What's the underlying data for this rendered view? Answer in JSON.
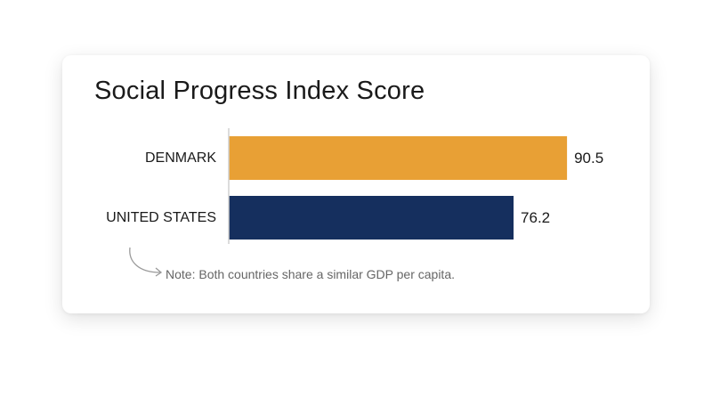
{
  "chart_data": {
    "type": "bar",
    "orientation": "horizontal",
    "title": "Social Progress Index Score",
    "categories": [
      "DENMARK",
      "UNITED STATES"
    ],
    "values": [
      90.5,
      76.2
    ],
    "value_labels": [
      "90.5",
      "76.2"
    ],
    "xlim": [
      0,
      100
    ],
    "grid": false,
    "legend": "none"
  },
  "note": "Note: Both countries share a similar GDP per capita.",
  "colors": {
    "bars": [
      "#E8A035",
      "#152F5E"
    ],
    "axis": "#d0d0d0",
    "note": "#666666"
  },
  "icons": {
    "note_pointer": "curved-arrow-icon"
  }
}
